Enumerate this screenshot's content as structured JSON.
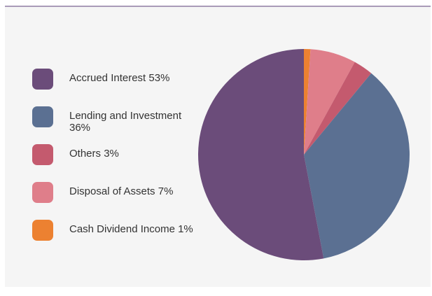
{
  "chart_data": {
    "type": "pie",
    "categories": [
      "Accrued Interest",
      "Lending and Investment",
      "Others",
      "Disposal of Assets",
      "Cash Dividend Income"
    ],
    "values": [
      53,
      36,
      3,
      7,
      1
    ],
    "value_labels": [
      "53%",
      "36%",
      "3%",
      "7%",
      "1%"
    ],
    "colors": [
      "#6b4c7a",
      "#5b7092",
      "#c45a6e",
      "#df7e8a",
      "#ec8131"
    ],
    "legend": "left"
  }
}
